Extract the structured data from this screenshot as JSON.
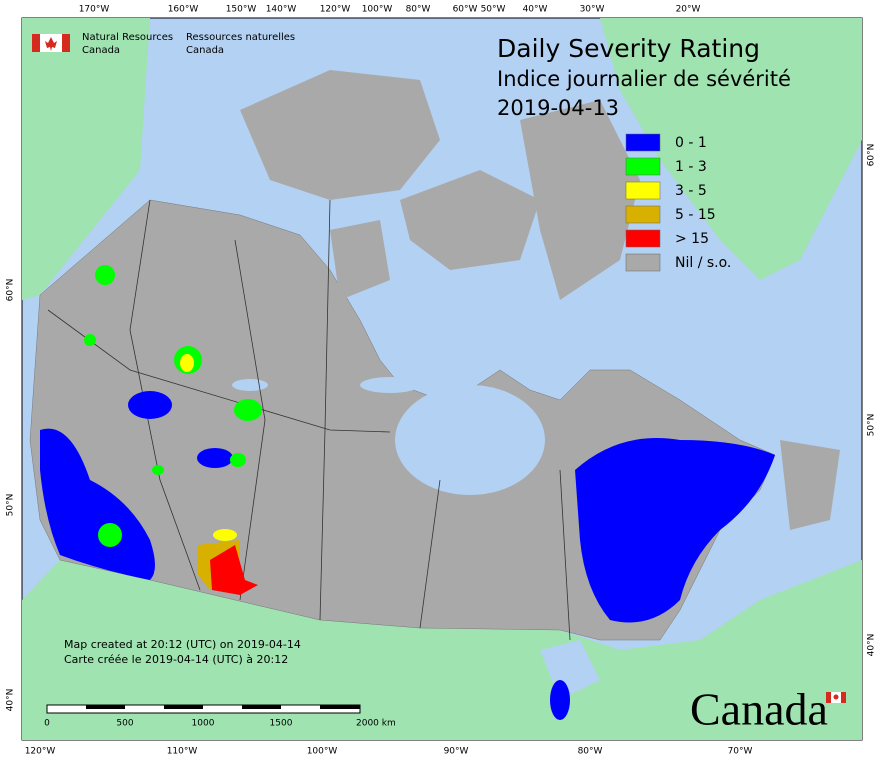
{
  "header": {
    "department_en": "Natural Resources",
    "country_en": "Canada",
    "department_fr": "Ressources naturelles",
    "country_fr": "Canada"
  },
  "title": {
    "line1": "Daily Severity Rating",
    "line2": "Indice journalier de sévérité",
    "date": "2019-04-13"
  },
  "legend": {
    "items": [
      {
        "label": "0 - 1",
        "color": "#0000ff"
      },
      {
        "label": "1 - 3",
        "color": "#00ff00"
      },
      {
        "label": "3 - 5",
        "color": "#ffff00"
      },
      {
        "label": "5 - 15",
        "color": "#d8b000"
      },
      {
        "label": "> 15",
        "color": "#ff0000"
      },
      {
        "label": "Nil / s.o.",
        "color": "#a9a9a9"
      }
    ]
  },
  "graticule": {
    "top": [
      "170°W",
      "160°W",
      "150°W",
      "140°W",
      "120°W",
      "100°W",
      "80°W",
      "60°W",
      "50°W",
      "40°W",
      "30°W",
      "20°W"
    ],
    "bottom": [
      "120°W",
      "110°W",
      "100°W",
      "90°W",
      "80°W",
      "70°W"
    ],
    "left": [
      "60°N",
      "50°N",
      "40°N"
    ],
    "right": [
      "60°N",
      "50°N",
      "40°N"
    ]
  },
  "scale_bar": {
    "labels": [
      "0",
      "500",
      "1000",
      "1500",
      "2000 km"
    ]
  },
  "notes": {
    "created_en": "Map created at 20:12 (UTC) on 2019-04-14",
    "created_fr": "Carte créée le 2019-04-14 (UTC) à 20:12"
  },
  "wordmark": "Canada"
}
